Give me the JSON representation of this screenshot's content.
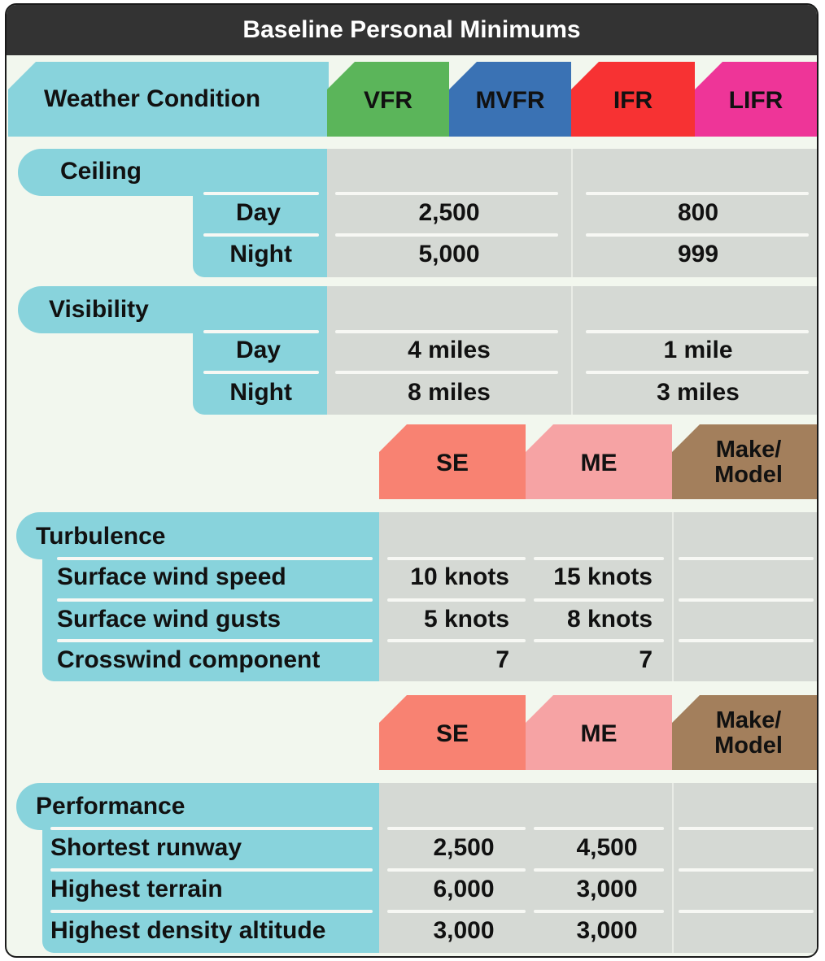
{
  "title": "Baseline Personal Minimums",
  "weather_header": {
    "label": "Weather Condition",
    "categories": [
      {
        "label": "VFR",
        "color": "#5bb55a"
      },
      {
        "label": "MVFR",
        "color": "#3a72b4"
      },
      {
        "label": "IFR",
        "color": "#f73233"
      },
      {
        "label": "LIFR",
        "color": "#ee3598"
      }
    ]
  },
  "ceiling": {
    "label": "Ceiling",
    "rows": [
      {
        "label": "Day",
        "vfr": "2,500",
        "ifr": "800"
      },
      {
        "label": "Night",
        "vfr": "5,000",
        "ifr": "999"
      }
    ]
  },
  "visibility": {
    "label": "Visibility",
    "rows": [
      {
        "label": "Day",
        "vfr": "4 miles",
        "ifr": "1 mile"
      },
      {
        "label": "Night",
        "vfr": "8 miles",
        "ifr": "3 miles"
      }
    ]
  },
  "aircraft_header": [
    {
      "label": "SE",
      "color": "#f88272"
    },
    {
      "label": "ME",
      "color": "#f6a3a4"
    },
    {
      "label": "Make/ Model",
      "color": "#a37f5c"
    }
  ],
  "turbulence": {
    "label": "Turbulence",
    "rows": [
      {
        "label": "Surface wind speed",
        "se": "10 knots",
        "me": "15 knots",
        "model": ""
      },
      {
        "label": "Surface wind gusts",
        "se": "5 knots",
        "me": "8 knots",
        "model": ""
      },
      {
        "label": "Crosswind component",
        "se": "7",
        "me": "7",
        "model": ""
      }
    ]
  },
  "performance": {
    "label": "Performance",
    "rows": [
      {
        "label": "Shortest runway",
        "se": "2,500",
        "me": "4,500",
        "model": ""
      },
      {
        "label": "Highest terrain",
        "se": "6,000",
        "me": "3,000",
        "model": ""
      },
      {
        "label": "Highest density altitude",
        "se": "3,000",
        "me": "3,000",
        "model": ""
      }
    ]
  }
}
